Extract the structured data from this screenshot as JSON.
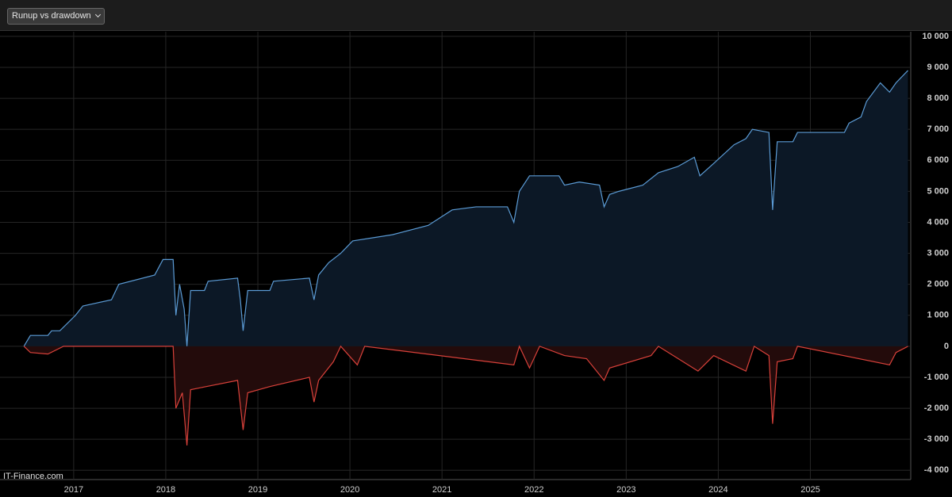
{
  "dropdown": "Runup vs drawdown",
  "watermark": "IT-Finance.com",
  "chart_data": {
    "type": "line",
    "xlim": [
      2016.2,
      2026.09
    ],
    "xticks": [
      2017,
      2018,
      2019,
      2020,
      2021,
      2022,
      2023,
      2024,
      2025
    ],
    "ylim": [
      -4300,
      10150
    ],
    "yticks": [
      {
        "value": 10000,
        "label": "10 000"
      },
      {
        "value": 9000,
        "label": "9 000"
      },
      {
        "value": 8000,
        "label": "8 000"
      },
      {
        "value": 7000,
        "label": "7 000"
      },
      {
        "value": 6000,
        "label": "6 000"
      },
      {
        "value": 5000,
        "label": "5 000"
      },
      {
        "value": 4000,
        "label": "4 000"
      },
      {
        "value": 3000,
        "label": "3 000"
      },
      {
        "value": 2000,
        "label": "2 000"
      },
      {
        "value": 1000,
        "label": "1 000"
      },
      0,
      {
        "value": -1000,
        "label": "-1 000"
      },
      {
        "value": -2000,
        "label": "-2 000"
      },
      {
        "value": -3000,
        "label": "-3 000"
      },
      {
        "value": -4000,
        "label": "-4 000"
      }
    ],
    "grid": true,
    "series": [
      {
        "color": "#5b9bd5",
        "fill": "#0c1826",
        "x": [
          2016.46,
          2016.53,
          2016.72,
          2016.76,
          2016.85,
          2017.02,
          2017.1,
          2017.41,
          2017.49,
          2017.88,
          2017.97,
          2018.08,
          2018.11,
          2018.15,
          2018.2,
          2018.23,
          2018.27,
          2018.42,
          2018.46,
          2018.78,
          2018.81,
          2018.84,
          2018.89,
          2019.13,
          2019.17,
          2019.56,
          2019.61,
          2019.66,
          2019.77,
          2019.9,
          2020.03,
          2020.46,
          2020.85,
          2021.11,
          2021.37,
          2021.71,
          2021.78,
          2021.84,
          2021.95,
          2022.27,
          2022.33,
          2022.49,
          2022.71,
          2022.76,
          2022.82,
          2022.92,
          2023.18,
          2023.35,
          2023.56,
          2023.74,
          2023.8,
          2023.95,
          2024.17,
          2024.3,
          2024.37,
          2024.55,
          2024.59,
          2024.64,
          2024.81,
          2024.86,
          2025.37,
          2025.42,
          2025.55,
          2025.61,
          2025.76,
          2025.86,
          2025.93,
          2026.06
        ],
        "values": [
          0,
          350,
          350,
          500,
          500,
          1000,
          1300,
          1500,
          2000,
          2300,
          2800,
          2800,
          1000,
          2000,
          1200,
          0,
          1800,
          1800,
          2100,
          2200,
          1500,
          500,
          1800,
          1800,
          2100,
          2200,
          1500,
          2300,
          2700,
          3000,
          3400,
          3600,
          3900,
          4400,
          4500,
          4500,
          4000,
          5000,
          5500,
          5500,
          5200,
          5300,
          5200,
          4500,
          4900,
          5000,
          5200,
          5600,
          5800,
          6100,
          5500,
          5900,
          6500,
          6700,
          7000,
          6900,
          4400,
          6600,
          6600,
          6900,
          6900,
          7200,
          7400,
          7900,
          8500,
          8200,
          8500,
          8900
        ]
      },
      {
        "color": "#d9413a",
        "fill": "#230b0b",
        "x": [
          2016.46,
          2016.53,
          2016.72,
          2016.89,
          2018.08,
          2018.11,
          2018.18,
          2018.23,
          2018.27,
          2018.44,
          2018.78,
          2018.84,
          2018.89,
          2019.13,
          2019.56,
          2019.61,
          2019.66,
          2019.82,
          2019.9,
          2020.08,
          2020.16,
          2021.78,
          2021.84,
          2021.95,
          2022.06,
          2022.33,
          2022.57,
          2022.76,
          2022.82,
          2023.27,
          2023.35,
          2023.78,
          2023.95,
          2024.3,
          2024.39,
          2024.55,
          2024.59,
          2024.64,
          2024.81,
          2024.86,
          2025.86,
          2025.93,
          2026.06
        ],
        "values": [
          0,
          -200,
          -250,
          0,
          0,
          -2000,
          -1500,
          -3200,
          -1400,
          -1300,
          -1100,
          -2700,
          -1500,
          -1300,
          -1000,
          -1800,
          -1100,
          -500,
          0,
          -600,
          0,
          -600,
          0,
          -700,
          0,
          -300,
          -400,
          -1100,
          -700,
          -300,
          0,
          -800,
          -300,
          -800,
          0,
          -300,
          -2500,
          -500,
          -400,
          0,
          -600,
          -200,
          0
        ]
      }
    ]
  }
}
